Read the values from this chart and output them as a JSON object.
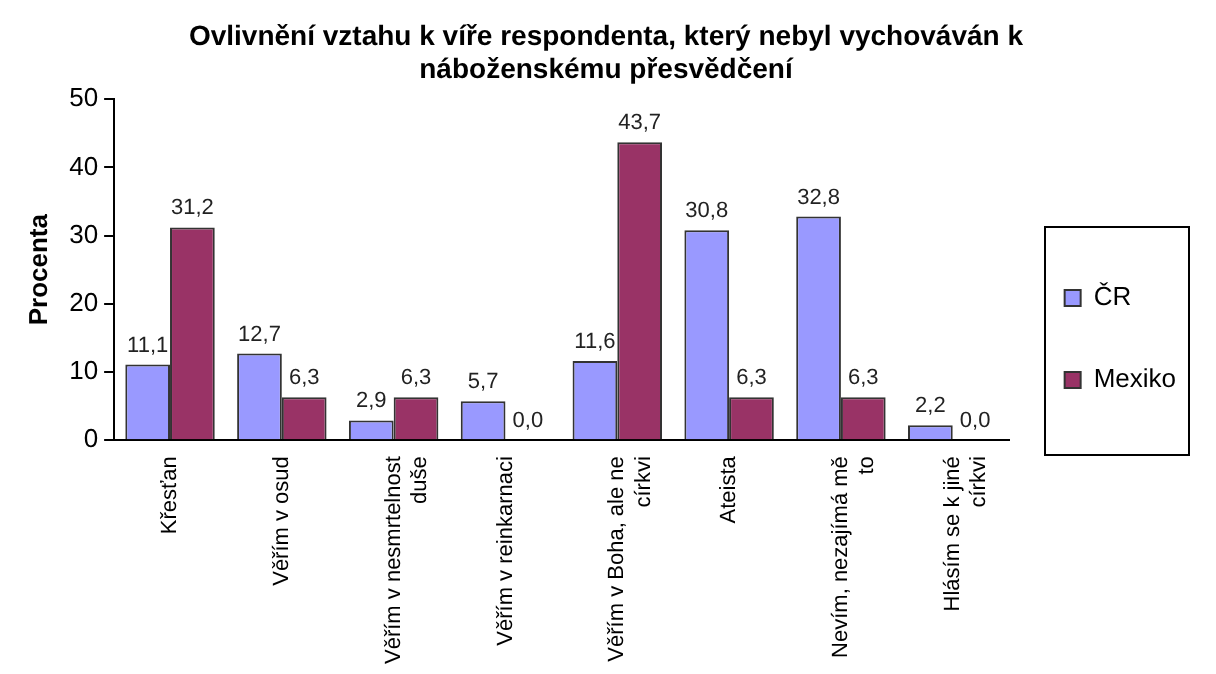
{
  "chart_data": {
    "type": "bar",
    "title": "Ovlivnění vztahu k víře respondenta, který nebyl vychováván k náboženskému přesvědčení",
    "ylabel": "Procenta",
    "categories": [
      "Křesťan",
      "Věřím v osud",
      "Věřím v nesmrtelnost duše",
      "Věřím v reinkarnaci",
      "Věřím v Boha, ale ne církvi",
      "Ateista",
      "Nevím, nezajímá mě to",
      "Hlásím se k jiné církvi"
    ],
    "series": [
      {
        "name": "ČR",
        "color": "#9999ff",
        "values": [
          11.1,
          12.7,
          2.9,
          5.7,
          11.6,
          30.8,
          32.8,
          2.2
        ],
        "value_labels": [
          "11,1",
          "12,7",
          "2,9",
          "5,7",
          "11,6",
          "30,8",
          "32,8",
          "2,2"
        ]
      },
      {
        "name": "Mexiko",
        "color": "#993366",
        "values": [
          31.2,
          6.3,
          6.3,
          0.0,
          43.7,
          6.3,
          6.3,
          0.0
        ],
        "value_labels": [
          "31,2",
          "6,3",
          "6,3",
          "0,0",
          "43,7",
          "6,3",
          "6,3",
          "0,0"
        ]
      }
    ],
    "ylim": [
      0,
      50
    ],
    "yticks": [
      0,
      10,
      20,
      30,
      40,
      50
    ],
    "grid": false,
    "legend": "right"
  }
}
